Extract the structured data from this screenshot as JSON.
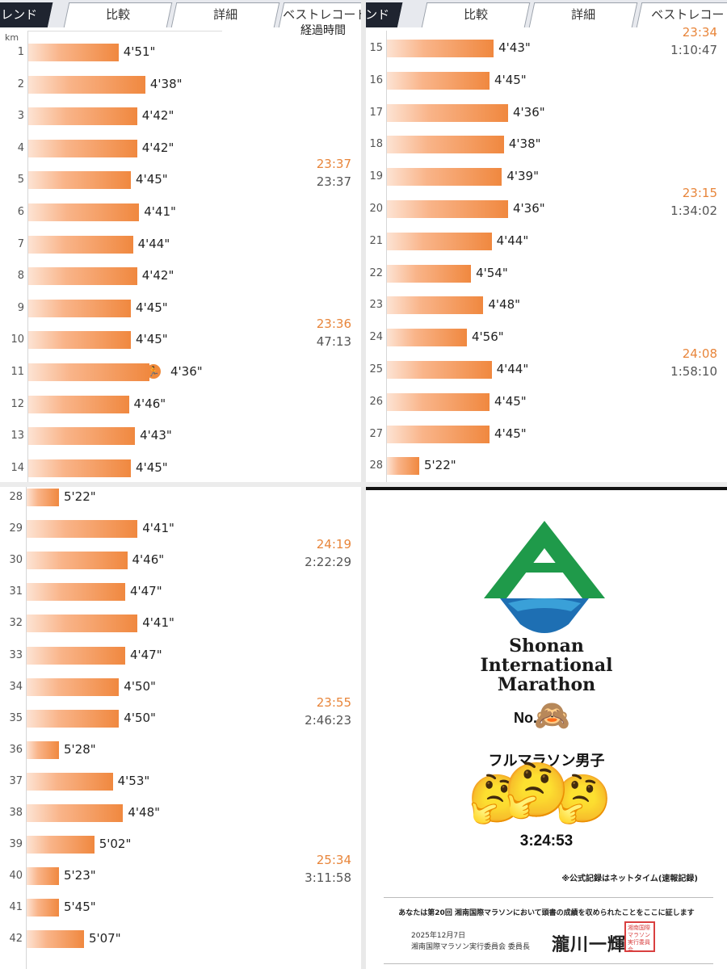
{
  "tabs": [
    "レンド",
    "比較",
    "詳細",
    "ベストレコード"
  ],
  "tabs_right": [
    "ンド",
    "比較",
    "詳細",
    "ベストレコー"
  ],
  "km_unit": "km",
  "elapsed_header": "経過時間",
  "colors": {
    "accent": "#f0883f",
    "lap": "#e8853a",
    "logo_green": "#1f9a4a",
    "logo_blue": "#1e6fb3"
  },
  "panel1": {
    "rows": [
      {
        "km": "1",
        "pace": "4'51\""
      },
      {
        "km": "2",
        "pace": "4'38\""
      },
      {
        "km": "3",
        "pace": "4'42\""
      },
      {
        "km": "4",
        "pace": "4'42\""
      },
      {
        "km": "5",
        "pace": "4'45\""
      },
      {
        "km": "6",
        "pace": "4'41\""
      },
      {
        "km": "7",
        "pace": "4'44\""
      },
      {
        "km": "8",
        "pace": "4'42\""
      },
      {
        "km": "9",
        "pace": "4'45\""
      },
      {
        "km": "10",
        "pace": "4'45\""
      },
      {
        "km": "11",
        "pace": "4'36\""
      },
      {
        "km": "12",
        "pace": "4'46\""
      },
      {
        "km": "13",
        "pace": "4'43\""
      },
      {
        "km": "14",
        "pace": "4'45\""
      }
    ],
    "splits": [
      {
        "after_km": "5",
        "lap": "23:37",
        "total": "23:37"
      },
      {
        "after_km": "10",
        "lap": "23:36",
        "total": "47:13"
      }
    ]
  },
  "panel2": {
    "rows": [
      {
        "km": "15",
        "pace": "4'43\""
      },
      {
        "km": "16",
        "pace": "4'45\""
      },
      {
        "km": "17",
        "pace": "4'36\""
      },
      {
        "km": "18",
        "pace": "4'38\""
      },
      {
        "km": "19",
        "pace": "4'39\""
      },
      {
        "km": "20",
        "pace": "4'36\""
      },
      {
        "km": "21",
        "pace": "4'44\""
      },
      {
        "km": "22",
        "pace": "4'54\""
      },
      {
        "km": "23",
        "pace": "4'48\""
      },
      {
        "km": "24",
        "pace": "4'56\""
      },
      {
        "km": "25",
        "pace": "4'44\""
      },
      {
        "km": "26",
        "pace": "4'45\""
      },
      {
        "km": "27",
        "pace": "4'45\""
      },
      {
        "km": "28",
        "pace": "5'22\""
      }
    ],
    "splits": [
      {
        "after_km": "15",
        "lap": "23:34",
        "total": "1:10:47"
      },
      {
        "after_km": "20",
        "lap": "23:15",
        "total": "1:34:02"
      },
      {
        "after_km": "25",
        "lap": "24:08",
        "total": "1:58:10"
      }
    ]
  },
  "panel3": {
    "rows": [
      {
        "km": "28",
        "pace": "5'22\""
      },
      {
        "km": "29",
        "pace": "4'41\""
      },
      {
        "km": "30",
        "pace": "4'46\""
      },
      {
        "km": "31",
        "pace": "4'47\""
      },
      {
        "km": "32",
        "pace": "4'41\""
      },
      {
        "km": "33",
        "pace": "4'47\""
      },
      {
        "km": "34",
        "pace": "4'50\""
      },
      {
        "km": "35",
        "pace": "4'50\""
      },
      {
        "km": "36",
        "pace": "5'28\""
      },
      {
        "km": "37",
        "pace": "4'53\""
      },
      {
        "km": "38",
        "pace": "4'48\""
      },
      {
        "km": "39",
        "pace": "5'02\""
      },
      {
        "km": "40",
        "pace": "5'23\""
      },
      {
        "km": "41",
        "pace": "5'45\""
      },
      {
        "km": "42",
        "pace": "5'07\""
      }
    ],
    "splits": [
      {
        "after_km": "30",
        "lap": "24:19",
        "total": "2:22:29"
      },
      {
        "after_km": "35",
        "lap": "23:55",
        "total": "2:46:23"
      },
      {
        "after_km": "40",
        "lap": "25:34",
        "total": "3:11:58"
      }
    ]
  },
  "certificate": {
    "org_line1": "Shonan",
    "org_line2": "International",
    "org_line3": "Marathon",
    "bib_label": "No.",
    "monkey_emoji": "🙈",
    "category": "フルマラソン男子",
    "thinking_emoji": "🤔",
    "net_time": "3:24:53",
    "note": "※公式記録はネットタイム(速報記録)",
    "statement": "あなたは第20回 湘南国際マラソンにおいて頭書の成績を収められたことをここに証します",
    "date": "2025年12月7日",
    "committee": "湘南国際マラソン実行委員会 委員長",
    "signature": "瀧川一輝",
    "seal_text": "湘南国際マラソン実行委員会"
  }
}
